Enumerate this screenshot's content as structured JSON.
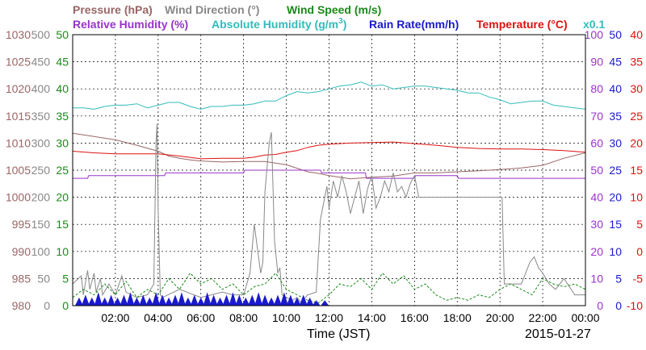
{
  "chart_data": {
    "type": "line",
    "date": "2015-01-27",
    "xlabel": "Time (JST)",
    "x_ticks": [
      "02:00",
      "04:00",
      "06:00",
      "08:00",
      "10:00",
      "12:00",
      "14:00",
      "16:00",
      "18:00",
      "20:00",
      "22:00",
      "00:00"
    ],
    "x_range_hours": [
      0,
      24
    ],
    "grid": true,
    "legend": {
      "row1": [
        {
          "label": "Pressure (hPa)",
          "color": "#996666"
        },
        {
          "label": "Wind Direction (°)",
          "color": "#888888"
        },
        {
          "label": "Wind Speed (m/s)",
          "color": "#1a8a1a"
        }
      ],
      "row2": [
        {
          "label": "Relative Humidity (%)",
          "color": "#9933cc"
        },
        {
          "label": "Absolute Humidity (g/m",
          "color": "#33bbbb",
          "sup": "3",
          "close": ")"
        },
        {
          "label": "Rain Rate(mm/h)",
          "color": "#1a1acc"
        },
        {
          "label": "Temperature  (°C)",
          "color": "#dd1111"
        }
      ],
      "multiplier": "x0.1",
      "multiplier_color": "#33bbbb"
    },
    "axes": {
      "pressure": {
        "color": "#996666",
        "range": [
          980,
          1030
        ],
        "ticks": [
          "1030",
          "1025",
          "1020",
          "1015",
          "1010",
          "1005",
          "1000",
          "995",
          "990",
          "985",
          "980"
        ]
      },
      "wind_direction": {
        "color": "#888888",
        "range": [
          0,
          500
        ],
        "ticks": [
          "500",
          "450",
          "400",
          "350",
          "300",
          "250",
          "200",
          "150",
          "100",
          "50",
          "0"
        ]
      },
      "wind_speed": {
        "color": "#1a8a1a",
        "range": [
          0,
          50
        ],
        "ticks": [
          "50",
          "45",
          "40",
          "35",
          "30",
          "25",
          "20",
          "15",
          "10",
          "5",
          "0"
        ]
      },
      "relative_humidity": {
        "color": "#9933cc",
        "range": [
          0,
          100
        ],
        "ticks": [
          "100",
          "90",
          "80",
          "70",
          "60",
          "50",
          "40",
          "30",
          "20",
          "10",
          "0"
        ]
      },
      "rain_rate": {
        "color": "#1a1acc",
        "range": [
          0,
          50
        ],
        "ticks": [
          "50",
          "45",
          "40",
          "35",
          "30",
          "25",
          "20",
          "15",
          "10",
          "5",
          "0"
        ]
      },
      "temperature": {
        "color": "#dd1111",
        "range": [
          -10,
          40
        ],
        "ticks": [
          "40",
          "35",
          "30",
          "25",
          "20",
          "15",
          "10",
          "5",
          "0",
          "-5",
          "-10"
        ]
      }
    },
    "series": [
      {
        "name": "Pressure (hPa)",
        "axis": "pressure",
        "color": "#996666",
        "x": [
          0,
          1,
          2,
          3,
          4,
          4.5,
          5,
          5.5,
          6,
          7,
          8,
          9,
          10,
          11,
          11.5,
          12,
          13,
          14,
          15,
          16,
          17,
          18,
          19,
          20,
          21,
          22,
          23,
          24
        ],
        "values": [
          1011.8,
          1011.2,
          1010.6,
          1009.6,
          1008.5,
          1007.6,
          1007.2,
          1006.9,
          1006.7,
          1006.5,
          1006.6,
          1006.6,
          1006.0,
          1004.7,
          1004.4,
          1004.0,
          1003.4,
          1003.7,
          1003.9,
          1004.5,
          1004.5,
          1004.7,
          1004.9,
          1005.1,
          1005.4,
          1005.9,
          1007.2,
          1008.2
        ]
      },
      {
        "name": "Absolute Humidity (g/m3)",
        "axis": "relative_humidity",
        "color": "#33bbbb",
        "x": [
          0,
          0.5,
          1,
          1.5,
          2,
          2.5,
          3,
          3.5,
          4,
          4.5,
          5,
          5.5,
          6,
          6.5,
          7,
          7.5,
          8,
          8.5,
          9,
          9.5,
          10,
          10.5,
          11,
          11.5,
          12,
          12.5,
          13,
          13.5,
          14,
          14.5,
          15,
          15.5,
          16,
          16.5,
          17,
          17.5,
          18,
          18.5,
          19,
          19.5,
          20,
          20.5,
          21,
          21.5,
          22,
          22.5,
          23,
          23.5,
          24
        ],
        "values": [
          73,
          73,
          72.5,
          73.5,
          74,
          74,
          74.5,
          73,
          74,
          75,
          75,
          73.5,
          72.5,
          73.5,
          73.5,
          74,
          74,
          74.5,
          75.5,
          75.5,
          77.5,
          79,
          78.5,
          79,
          80,
          81,
          81.5,
          82.5,
          81,
          81.5,
          80,
          80.5,
          81,
          81,
          80.5,
          80,
          79.5,
          78.5,
          78.5,
          77,
          76,
          74.5,
          75,
          75.5,
          75.5,
          74,
          73.5,
          73,
          72.5
        ]
      },
      {
        "name": "Temperature (°C)",
        "axis": "temperature",
        "color": "#dd1111",
        "x": [
          0,
          1,
          2,
          3,
          4,
          5,
          6,
          7,
          8,
          8.5,
          9,
          9.5,
          10,
          10.5,
          11,
          11.5,
          12,
          13,
          14,
          15,
          16,
          17,
          18,
          19,
          20,
          21,
          22,
          23,
          24
        ],
        "values": [
          18.5,
          18.2,
          18.0,
          18.0,
          18.0,
          17.6,
          17.1,
          17.2,
          17.2,
          17.4,
          17.8,
          17.9,
          18.3,
          18.6,
          19.2,
          19.6,
          19.8,
          20.0,
          20.1,
          20.2,
          19.9,
          19.6,
          19.2,
          19.0,
          18.9,
          18.9,
          18.8,
          18.6,
          18.3
        ]
      },
      {
        "name": "Relative Humidity (%)",
        "axis": "relative_humidity",
        "color": "#9933cc",
        "x": [
          0,
          0.7,
          0.75,
          4.3,
          4.35,
          8,
          8.05,
          11.6,
          11.65,
          13.7,
          13.75,
          16,
          16.05,
          18,
          18.05,
          22,
          22.05,
          24
        ],
        "values": [
          47,
          47,
          48,
          48,
          49,
          49,
          50,
          50,
          49,
          49,
          47,
          47,
          48,
          48,
          47,
          47,
          47,
          47
        ]
      },
      {
        "name": "Wind Direction (°)",
        "axis": "wind_direction",
        "color": "#888888",
        "x": [
          0,
          0.4,
          0.5,
          0.7,
          0.8,
          1.0,
          1.1,
          1.3,
          1.4,
          1.7,
          2,
          2.3,
          2.5,
          3,
          3.5,
          3.8,
          3.9,
          3.95,
          4,
          4.1,
          4.2,
          5,
          6,
          7,
          7.5,
          8,
          8.3,
          8.5,
          8.8,
          8.9,
          9,
          9.2,
          9.3,
          9.45,
          9.6,
          9.7,
          9.8,
          10,
          10.3,
          10.5,
          10.7,
          11,
          11.4,
          11.6,
          11.8,
          11.9,
          12,
          12.2,
          12.4,
          12.6,
          12.8,
          13,
          13.2,
          13.4,
          13.6,
          13.8,
          14,
          14.2,
          14.4,
          14.6,
          14.8,
          15,
          15.2,
          15.4,
          15.6,
          15.8,
          16,
          16.2,
          16.5,
          17,
          17.5,
          18,
          18.5,
          19,
          19.5,
          20,
          20.1,
          20.2,
          20.5,
          21,
          21.2,
          21.4,
          21.6,
          21.8,
          22,
          22.3,
          22.6,
          23,
          23.5,
          24
        ],
        "values": [
          40,
          55,
          20,
          65,
          30,
          60,
          25,
          50,
          20,
          40,
          20,
          55,
          25,
          15,
          20,
          40,
          300,
          335,
          180,
          20,
          15,
          30,
          15,
          25,
          20,
          20,
          60,
          150,
          60,
          80,
          210,
          300,
          320,
          120,
          60,
          70,
          20,
          15,
          10,
          15,
          5,
          20,
          25,
          160,
          200,
          220,
          180,
          230,
          200,
          240,
          210,
          170,
          200,
          230,
          170,
          215,
          240,
          180,
          200,
          230,
          210,
          245,
          210,
          220,
          200,
          225,
          240,
          200,
          200,
          200,
          200,
          200,
          200,
          200,
          200,
          200,
          200,
          40,
          40,
          40,
          60,
          80,
          90,
          70,
          60,
          40,
          30,
          50,
          20,
          20
        ]
      },
      {
        "name": "Wind Speed (m/s)",
        "axis": "wind_speed",
        "color": "#1a8a1a",
        "x": [
          0,
          0.5,
          1,
          1.5,
          2,
          2.5,
          3,
          3.5,
          4,
          4.5,
          5,
          5.5,
          6,
          6.5,
          7,
          7.5,
          8,
          8.5,
          9,
          9.5,
          10,
          10.5,
          11,
          11.5,
          12,
          12.5,
          13,
          13.5,
          14,
          14.5,
          15,
          15.5,
          16,
          16.5,
          17,
          17.5,
          18,
          18.5,
          19,
          19.5,
          20,
          20.5,
          21,
          21.5,
          22,
          22.5,
          23,
          23.5,
          24
        ],
        "values": [
          1.5,
          3,
          2,
          4,
          2,
          4.5,
          1.5,
          3,
          2,
          5,
          3,
          6,
          4,
          5,
          3,
          4,
          2,
          3.5,
          4,
          6,
          3,
          2,
          1,
          0.5,
          2,
          4,
          3.5,
          5,
          3,
          6,
          4,
          5.5,
          3,
          4,
          2,
          1,
          1.5,
          1,
          2,
          1.5,
          3,
          4,
          3,
          2,
          5,
          4,
          3.5,
          4,
          3
        ]
      },
      {
        "name": "Rain Rate(mm/h)",
        "axis": "rain_rate",
        "color": "#1a1acc",
        "x": [
          0.3,
          0.6,
          0.9,
          1.2,
          1.5,
          1.8,
          2.1,
          2.4,
          2.7,
          3,
          3.3,
          3.6,
          3.9,
          4.2,
          4.5,
          4.8,
          5.1,
          5.4,
          5.7,
          6,
          6.3,
          6.6,
          6.9,
          7.2,
          7.5,
          7.8,
          8.1,
          8.4,
          8.7,
          9,
          9.3,
          9.6,
          9.9,
          10.2,
          10.5,
          10.8,
          11.1,
          11.4,
          11.8
        ],
        "values": [
          1.5,
          2,
          1.5,
          2.5,
          1.5,
          2,
          1.5,
          2,
          2.5,
          1.5,
          2,
          1.5,
          2.5,
          2,
          1.5,
          2,
          2.5,
          1.5,
          2,
          1.5,
          2.5,
          2,
          1.5,
          2,
          2.5,
          2,
          1.5,
          2,
          2.5,
          2,
          1.5,
          2,
          2.5,
          2,
          1.5,
          2,
          1.5,
          1,
          1
        ]
      }
    ]
  }
}
